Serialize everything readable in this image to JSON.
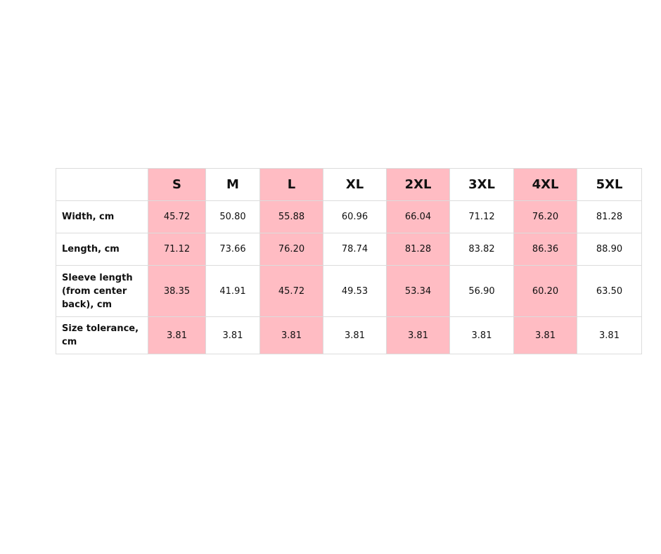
{
  "chart_data": {
    "type": "table",
    "columns": [
      "",
      "S",
      "M",
      "L",
      "XL",
      "2XL",
      "3XL",
      "4XL",
      "5XL"
    ],
    "highlight_color": "#ffbcc3",
    "highlighted_columns": [
      "S",
      "L",
      "2XL",
      "4XL"
    ],
    "rows": [
      {
        "label": "Width, cm",
        "values": [
          "45.72",
          "50.80",
          "55.88",
          "60.96",
          "66.04",
          "71.12",
          "76.20",
          "81.28"
        ]
      },
      {
        "label": "Length, cm",
        "values": [
          "71.12",
          "73.66",
          "76.20",
          "78.74",
          "81.28",
          "83.82",
          "86.36",
          "88.90"
        ]
      },
      {
        "label": "Sleeve length (from center back), cm",
        "values": [
          "38.35",
          "41.91",
          "45.72",
          "49.53",
          "53.34",
          "56.90",
          "60.20",
          "63.50"
        ]
      },
      {
        "label": "Size tolerance, cm",
        "values": [
          "3.81",
          "3.81",
          "3.81",
          "3.81",
          "3.81",
          "3.81",
          "3.81",
          "3.81"
        ]
      }
    ]
  }
}
